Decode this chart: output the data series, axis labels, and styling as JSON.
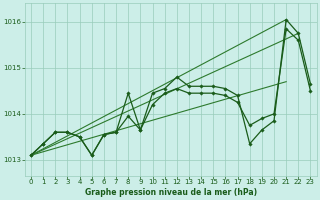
{
  "background_color": "#cceee8",
  "grid_color": "#99ccbb",
  "line_color_dark": "#1a5c1a",
  "line_color_mid": "#2d7a2d",
  "title": "Graphe pression niveau de la mer (hPa)",
  "xlim": [
    -0.5,
    23.5
  ],
  "ylim": [
    1012.65,
    1016.4
  ],
  "yticks": [
    1013,
    1014,
    1015,
    1016
  ],
  "xticks": [
    0,
    1,
    2,
    3,
    4,
    5,
    6,
    7,
    8,
    9,
    10,
    11,
    12,
    13,
    14,
    15,
    16,
    17,
    18,
    19,
    20,
    21,
    22,
    23
  ],
  "series_main": [
    1013.1,
    1013.35,
    1013.6,
    1013.6,
    1013.5,
    1013.1,
    1013.55,
    1013.6,
    1014.45,
    1013.65,
    1014.45,
    1014.55,
    1014.8,
    1014.6,
    1014.6,
    1014.6,
    1014.55,
    1014.4,
    1013.35,
    1013.65,
    1013.85,
    1016.05,
    1015.75,
    1014.65
  ],
  "series_secondary": [
    1013.1,
    1013.35,
    1013.6,
    1013.6,
    1013.5,
    1013.1,
    1013.55,
    1013.6,
    1013.95,
    1013.65,
    1014.2,
    1014.45,
    1014.55,
    1014.45,
    1014.45,
    1014.45,
    1014.4,
    1014.25,
    1013.75,
    1013.9,
    1014.0,
    1015.85,
    1015.6,
    1014.5
  ],
  "envelope_line1_x": [
    0,
    21
  ],
  "envelope_line1_y": [
    1013.1,
    1016.05
  ],
  "envelope_line2_x": [
    0,
    21
  ],
  "envelope_line2_y": [
    1013.1,
    1014.7
  ],
  "envelope_line3_x": [
    0,
    22
  ],
  "envelope_line3_y": [
    1013.1,
    1015.75
  ]
}
